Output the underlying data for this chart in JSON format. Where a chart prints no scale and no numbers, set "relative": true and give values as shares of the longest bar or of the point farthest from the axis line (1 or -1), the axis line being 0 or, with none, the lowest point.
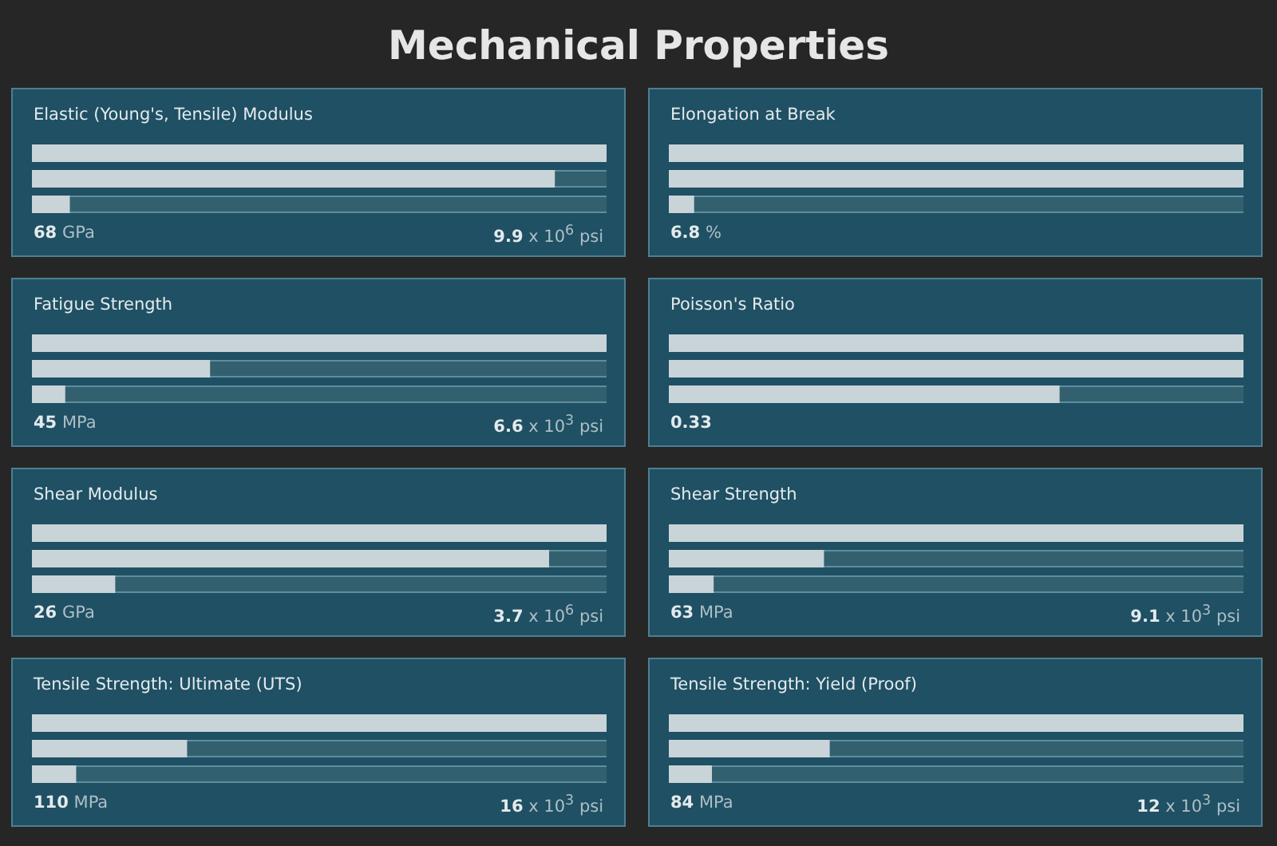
{
  "chart_data": [
    {
      "type": "other",
      "title": "Mechanical Properties"
    },
    {
      "type": "bar",
      "orientation": "horizontal",
      "relative": true,
      "tick_labels": false,
      "title": "Elastic (Young's, Tensile) Modulus",
      "categories": [
        null,
        null,
        null
      ],
      "values": [
        1,
        0.91,
        0.066
      ],
      "color": "#c9d4d9",
      "annotations": [
        "68 GPa",
        "9.9 x 10$^{6}$ psi"
      ]
    },
    {
      "type": "bar",
      "orientation": "horizontal",
      "relative": true,
      "tick_labels": false,
      "title": "Elongation at Break",
      "categories": [
        null,
        null,
        null
      ],
      "values": [
        1,
        1,
        0.044
      ],
      "color": "#c9d4d9",
      "annotations": [
        "6.8 %"
      ]
    },
    {
      "type": "bar",
      "orientation": "horizontal",
      "relative": true,
      "tick_labels": false,
      "title": "Fatigue Strength",
      "categories": [
        null,
        null,
        null
      ],
      "values": [
        1,
        0.31,
        0.058
      ],
      "color": "#c9d4d9",
      "annotations": [
        "45 MPa",
        "6.6 x 10$^{3}$ psi"
      ]
    },
    {
      "type": "bar",
      "orientation": "horizontal",
      "relative": true,
      "tick_labels": false,
      "title": "Poisson's Ratio",
      "categories": [
        null,
        null,
        null
      ],
      "values": [
        1,
        1,
        0.68
      ],
      "color": "#c9d4d9",
      "annotations": [
        "0.33"
      ]
    },
    {
      "type": "bar",
      "orientation": "horizontal",
      "relative": true,
      "tick_labels": false,
      "title": "Shear Modulus",
      "categories": [
        null,
        null,
        null
      ],
      "values": [
        1,
        0.9,
        0.145
      ],
      "color": "#c9d4d9",
      "annotations": [
        "26 GPa",
        "3.7 x 10$^{6}$ psi"
      ]
    },
    {
      "type": "bar",
      "orientation": "horizontal",
      "relative": true,
      "tick_labels": false,
      "title": "Shear Strength",
      "categories": [
        null,
        null,
        null
      ],
      "values": [
        1,
        0.27,
        0.078
      ],
      "color": "#c9d4d9",
      "annotations": [
        "63 MPa",
        "9.1 x 10$^{3}$ psi"
      ]
    },
    {
      "type": "bar",
      "orientation": "horizontal",
      "relative": true,
      "tick_labels": false,
      "title": "Tensile Strength: Ultimate (UTS)",
      "categories": [
        null,
        null,
        null
      ],
      "values": [
        1,
        0.27,
        0.077
      ],
      "color": "#c9d4d9",
      "annotations": [
        "110 MPa",
        "16 x 10$^{3}$ psi"
      ]
    },
    {
      "type": "bar",
      "orientation": "horizontal",
      "relative": true,
      "tick_labels": false,
      "title": "Tensile Strength: Yield (Proof)",
      "categories": [
        null,
        null,
        null
      ],
      "values": [
        1,
        0.28,
        0.075
      ],
      "color": "#c9d4d9",
      "annotations": [
        "84 MPa",
        "12 x 10$^{3}$ psi"
      ]
    }
  ]
}
